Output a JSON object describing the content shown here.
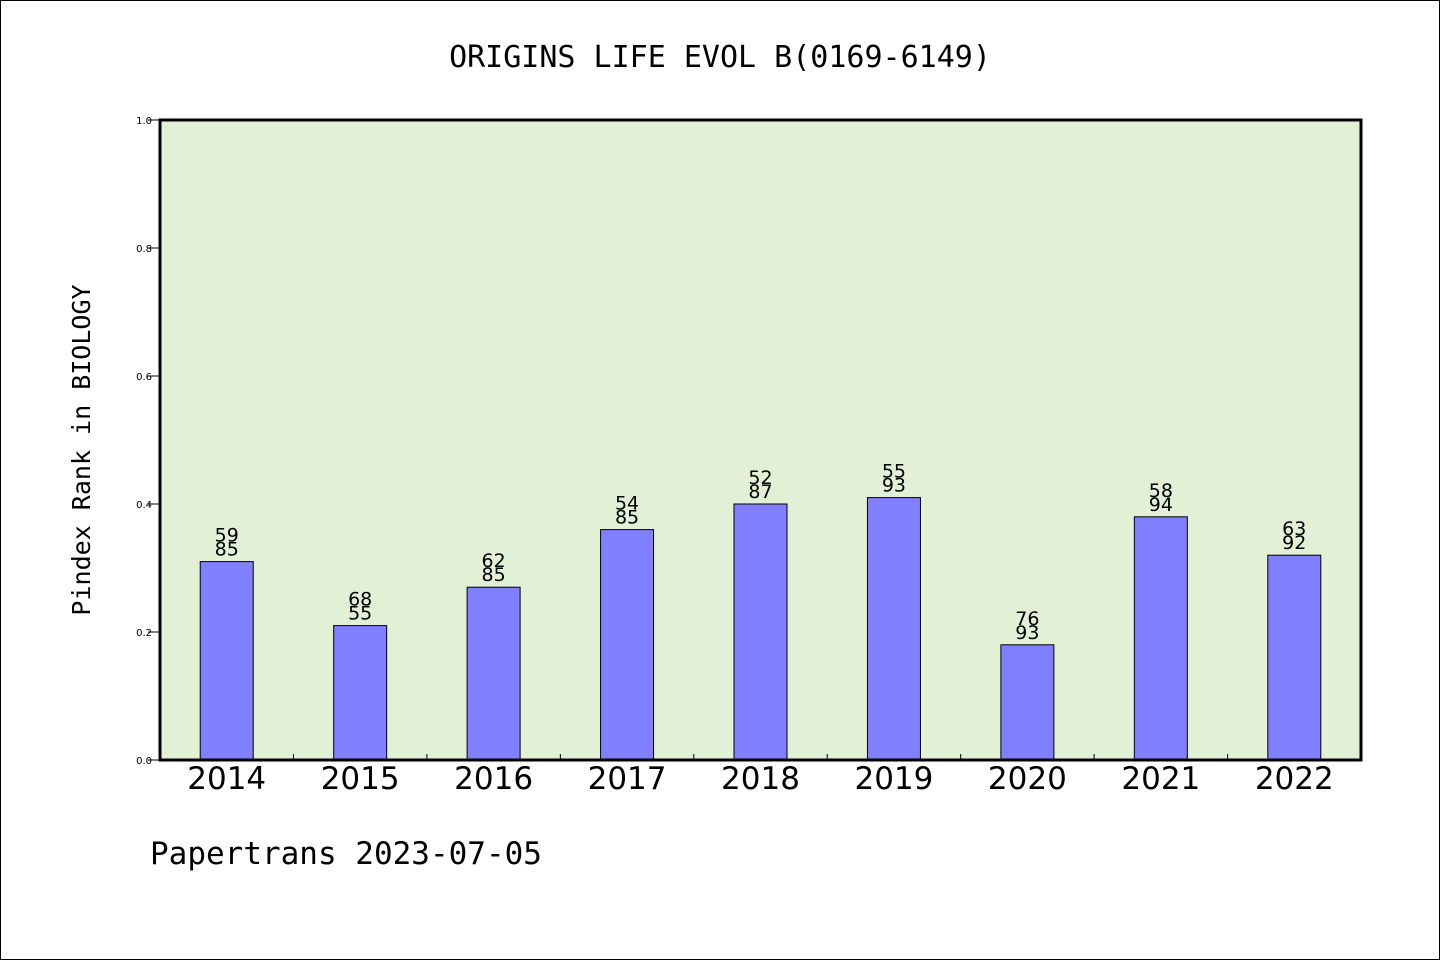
{
  "chart_data": {
    "type": "bar",
    "title": "ORIGINS LIFE EVOL B(0169-6149)",
    "xlabel": "",
    "ylabel": "Pindex Rank in BIOLOGY",
    "footer": "Papertrans 2023-07-05",
    "categories": [
      "2014",
      "2015",
      "2016",
      "2017",
      "2018",
      "2019",
      "2020",
      "2021",
      "2022"
    ],
    "values": [
      0.31,
      0.21,
      0.27,
      0.36,
      0.4,
      0.41,
      0.18,
      0.38,
      0.32
    ],
    "bar_labels": [
      [
        "59",
        "85"
      ],
      [
        "68",
        "55"
      ],
      [
        "62",
        "85"
      ],
      [
        "54",
        "85"
      ],
      [
        "52",
        "87"
      ],
      [
        "55",
        "93"
      ],
      [
        "76",
        "93"
      ],
      [
        "58",
        "94"
      ],
      [
        "63",
        "92"
      ]
    ],
    "ylim": [
      0,
      1.0
    ],
    "yticks": [
      "0.0",
      "0.2",
      "0.4",
      "0.6",
      "0.8",
      "1.0"
    ],
    "grid": false,
    "colors": {
      "bar": "#8080ff",
      "plot_background": "#e2f0d6",
      "axis": "#000000"
    }
  }
}
